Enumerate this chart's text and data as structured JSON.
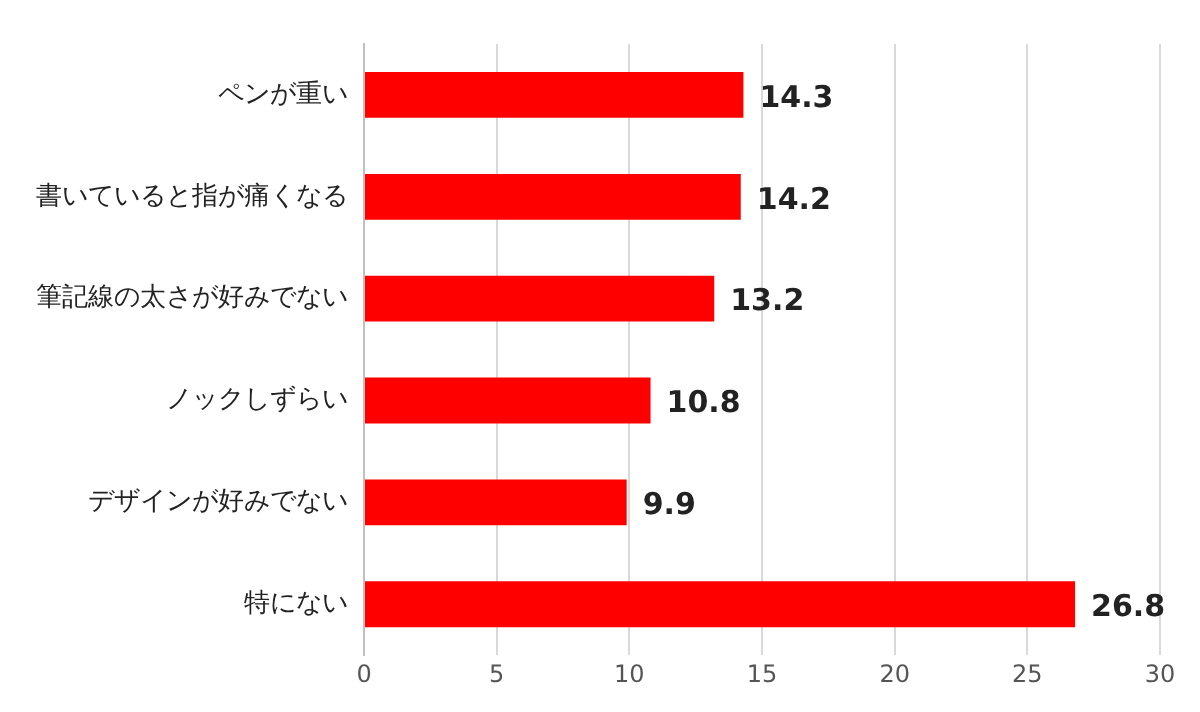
{
  "chart_data": {
    "type": "bar",
    "orientation": "horizontal",
    "categories": [
      "ペンが重い",
      "書いていると指が痛くなる",
      "筆記線の太さが好みでない",
      "ノックしずらい",
      "デザインが好みでない",
      "特にない"
    ],
    "values": [
      14.3,
      14.2,
      13.2,
      10.8,
      9.9,
      26.8
    ],
    "color": "#ff0000",
    "xlim": [
      0,
      30
    ],
    "xticks": [
      0,
      5,
      10,
      15,
      20,
      25,
      30
    ],
    "grid": "x",
    "data_labels": true
  }
}
